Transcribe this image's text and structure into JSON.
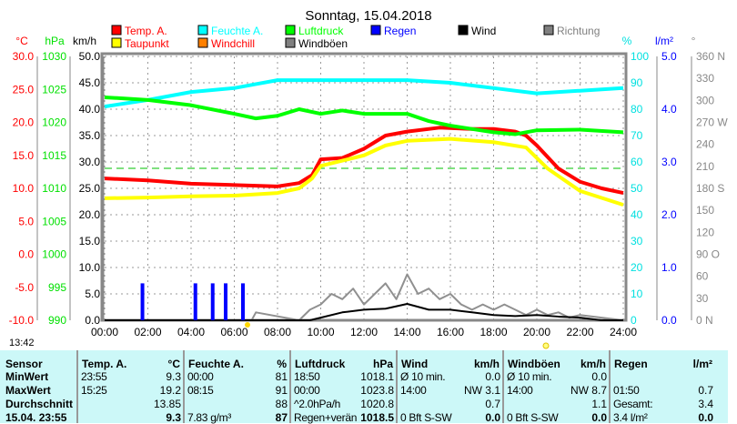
{
  "chart_data": {
    "type": "line",
    "title": "Sonntag, 15.04.2018",
    "legend": [
      {
        "label": "Temp. A.",
        "color": "#ff0000"
      },
      {
        "label": "Taupunkt",
        "color": "#ffff00"
      },
      {
        "label": "Feuchte A.",
        "color": "#00ffff"
      },
      {
        "label": "Windchill",
        "color": "#ff8000"
      },
      {
        "label": "Luftdruck",
        "color": "#00ff00"
      },
      {
        "label": "Windböen",
        "color": "#808080"
      },
      {
        "label": "Regen",
        "color": "#0000ff"
      },
      {
        "label": "Wind",
        "color": "#000000"
      },
      {
        "label": "Richtung",
        "color": "#808080"
      }
    ],
    "legend_text_colors": [
      "#ff0000",
      "#ff0000",
      "#00ffff",
      "#ff0000",
      "#00ff00",
      "#000000",
      "#0000ff",
      "#000000",
      "#808080"
    ],
    "axes": {
      "temp": {
        "unit": "°C",
        "ticks": [
          "30.0",
          "25.0",
          "20.0",
          "15.0",
          "10.0",
          "5.0",
          "0.0",
          "-5.0",
          "-10.0"
        ],
        "range": [
          -10,
          30
        ]
      },
      "pressure": {
        "unit": "hPa",
        "ticks": [
          "1030",
          "1025",
          "1020",
          "1015",
          "1010",
          "1005",
          "1000",
          "995",
          "990"
        ],
        "range": [
          990,
          1030
        ]
      },
      "wind": {
        "unit": "km/h",
        "ticks": [
          "50.0",
          "45.0",
          "40.0",
          "35.0",
          "30.0",
          "25.0",
          "20.0",
          "15.0",
          "10.0",
          "5.0",
          "0.0"
        ],
        "range": [
          0,
          50
        ]
      },
      "humidity": {
        "unit": "%",
        "ticks": [
          "100",
          "90",
          "80",
          "70",
          "60",
          "50",
          "40",
          "30",
          "20",
          "10",
          "0"
        ],
        "range": [
          0,
          100
        ]
      },
      "rain": {
        "unit": "l/m²",
        "ticks": [
          "5.0",
          "4.0",
          "3.0",
          "2.0",
          "1.0",
          "0.0"
        ],
        "range": [
          0,
          5
        ]
      },
      "direction": {
        "unit": "°",
        "ticks": [
          "360 N",
          "330",
          "300",
          "270 W",
          "240",
          "210",
          "180 S",
          "150",
          "120",
          "90  O",
          "60",
          "30",
          "0    N"
        ],
        "range": [
          0,
          360
        ]
      },
      "x": {
        "ticks": [
          "00:00",
          "02:00",
          "04:00",
          "06:00",
          "08:00",
          "10:00",
          "12:00",
          "14:00",
          "16:00",
          "18:00",
          "20:00",
          "22:00",
          "24:00"
        ],
        "range": [
          0,
          24
        ]
      }
    },
    "series": [
      {
        "name": "Temp. A.",
        "axis": "temp",
        "color": "#ff0000",
        "x": [
          0,
          2,
          4,
          6,
          8,
          9,
          9.6,
          10,
          11,
          12,
          13,
          14,
          15.5,
          17,
          18,
          19,
          19.5,
          20,
          21,
          22,
          23,
          24
        ],
        "y": [
          11.5,
          11.2,
          10.7,
          10.5,
          10.3,
          10.8,
          12,
          14.4,
          14.6,
          16,
          18,
          18.6,
          19.2,
          19,
          19,
          18.6,
          18,
          16.5,
          13,
          11,
          10,
          9.3
        ]
      },
      {
        "name": "Taupunkt",
        "axis": "temp",
        "color": "#ffff00",
        "x": [
          0,
          2,
          4,
          6,
          8,
          9,
          9.6,
          10,
          12,
          13,
          14,
          16,
          18,
          19.5,
          20.5,
          22,
          24
        ],
        "y": [
          8.5,
          8.6,
          8.8,
          8.9,
          9.3,
          10,
          11.5,
          13.4,
          15,
          16.5,
          17.2,
          17.5,
          17,
          16.2,
          13,
          9.6,
          7.5
        ]
      },
      {
        "name": "Feuchte A.",
        "axis": "humidity",
        "color": "#00ffff",
        "x": [
          0,
          2,
          4,
          6,
          7,
          8,
          12,
          14,
          16,
          18,
          20,
          22,
          24
        ],
        "y": [
          81,
          83.5,
          86.5,
          88,
          89.5,
          91,
          91,
          91,
          90,
          88,
          86,
          87,
          88
        ]
      },
      {
        "name": "Luftdruck",
        "axis": "pressure",
        "color": "#00ff00",
        "x": [
          0,
          2,
          4,
          6,
          7,
          8,
          9,
          10,
          11,
          12,
          14,
          15,
          16,
          18,
          19,
          20,
          22,
          24
        ],
        "y": [
          1023.8,
          1023.4,
          1022.6,
          1021.3,
          1020.6,
          1021,
          1022,
          1021.3,
          1021.8,
          1021.3,
          1021.3,
          1020.2,
          1019.5,
          1018.5,
          1018.2,
          1018.8,
          1018.9,
          1018.5
        ]
      },
      {
        "name": "Windböen",
        "axis": "wind",
        "color": "#909090",
        "x": [
          0,
          6.8,
          7,
          9,
          9.5,
          10,
          10.5,
          11,
          11.5,
          12,
          12.5,
          13,
          13.5,
          14,
          14.5,
          15,
          15.5,
          16,
          16.5,
          17,
          17.5,
          18,
          18.5,
          19,
          19.5,
          20,
          20.5,
          21,
          21.5,
          22,
          24
        ],
        "y": [
          0,
          0,
          1.5,
          0,
          2,
          3,
          5,
          4,
          6,
          3,
          5,
          7,
          4,
          8.7,
          5,
          6,
          4,
          5,
          3,
          2,
          3,
          2,
          3,
          2,
          1,
          2,
          1,
          1.5,
          0.5,
          1,
          0
        ]
      },
      {
        "name": "Wind",
        "axis": "wind",
        "color": "#000000",
        "x": [
          0,
          9.5,
          10,
          11,
          12,
          13,
          14,
          15,
          16,
          17,
          18,
          19,
          20,
          21,
          22,
          23,
          24
        ],
        "y": [
          0,
          0,
          0.5,
          1.5,
          2,
          2.2,
          3.1,
          2,
          2,
          1.5,
          1,
          0.8,
          1,
          0.7,
          0.5,
          0,
          0
        ]
      }
    ],
    "rain_bars": {
      "axis": "rain",
      "color": "#0000ff",
      "x": [
        1.75,
        4.2,
        5.0,
        5.6,
        6.4
      ],
      "y": [
        0.7,
        0.7,
        0.7,
        0.7,
        0.7
      ]
    }
  },
  "status_time": "13:42",
  "table": {
    "row_labels": [
      "Sensor",
      "MinWert",
      "MaxWert",
      "Durchschnitt",
      "15.04. 23:55"
    ],
    "cols": [
      {
        "title": "Temp. A.",
        "unit": "°C",
        "times": [
          "23:55",
          "15:25",
          "",
          ""
        ],
        "values": [
          "9.3",
          "19.2",
          "13.85",
          "9.3"
        ]
      },
      {
        "title": "Feuchte A.",
        "unit": "%",
        "times": [
          "00:00",
          "08:15",
          "",
          "7.83 g/m³"
        ],
        "values": [
          "81",
          "91",
          "88",
          "87"
        ]
      },
      {
        "title": "Luftdruck",
        "unit": "hPa",
        "times": [
          "18:50",
          "00:00",
          "^2.0hPa/h",
          "Regen+verän"
        ],
        "values": [
          "1018.1",
          "1023.8",
          "1020.8",
          "1018.5"
        ]
      },
      {
        "title": "Wind",
        "unit": "km/h",
        "times": [
          "Ø 10 min.",
          "14:00",
          "",
          "0 Bft S-SW"
        ],
        "values": [
          "0.0",
          "NW 3.1",
          "0.7",
          "0.0"
        ]
      },
      {
        "title": "Windböen",
        "unit": "km/h",
        "times": [
          "Ø 10 min.",
          "14:00",
          "",
          "0 Bft S-SW"
        ],
        "values": [
          "0.0",
          "NW 8.7",
          "1.1",
          "0.0"
        ]
      },
      {
        "title": "Regen",
        "unit": "l/m²",
        "times": [
          "",
          "01:50",
          "Gesamt:",
          "3.4 l/m²"
        ],
        "values": [
          "",
          "0.7",
          "3.4",
          "0.0"
        ]
      }
    ]
  }
}
